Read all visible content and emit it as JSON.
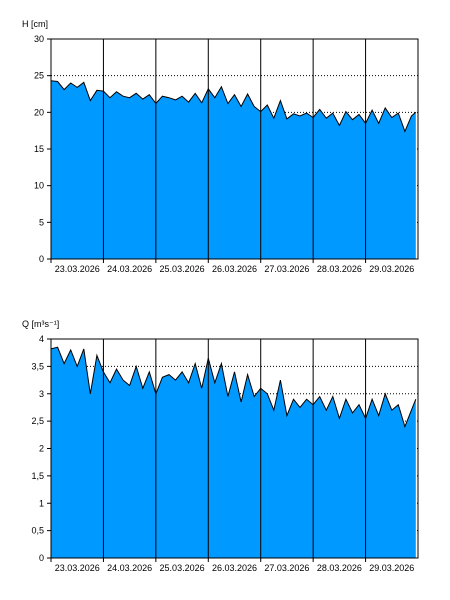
{
  "chart_data": [
    {
      "type": "area",
      "ylabel": "H [cm]",
      "ylim": [
        0,
        30
      ],
      "yticks": [
        0,
        5,
        10,
        15,
        20,
        25,
        30
      ],
      "xlim": [
        "2026-03-23",
        "2026-03-30"
      ],
      "categories": [
        "23.03.2026",
        "24.03.2026",
        "25.03.2026",
        "26.03.2026",
        "27.03.2026",
        "28.03.2026",
        "29.03.2026"
      ],
      "grid": "dotted",
      "fill_color": "#0099ff",
      "series": [
        {
          "x": [
            "2026-03-23T00:00",
            "2026-03-23T03:00",
            "2026-03-23T06:00",
            "2026-03-23T09:00",
            "2026-03-23T12:00",
            "2026-03-23T15:00",
            "2026-03-23T18:00",
            "2026-03-23T21:00",
            "2026-03-24T00:00",
            "2026-03-24T03:00",
            "2026-03-24T06:00",
            "2026-03-24T09:00",
            "2026-03-24T12:00",
            "2026-03-24T15:00",
            "2026-03-24T18:00",
            "2026-03-24T21:00",
            "2026-03-25T00:00",
            "2026-03-25T03:00",
            "2026-03-25T06:00",
            "2026-03-25T09:00",
            "2026-03-25T12:00",
            "2026-03-25T15:00",
            "2026-03-25T18:00",
            "2026-03-25T21:00",
            "2026-03-26T00:00",
            "2026-03-26T03:00",
            "2026-03-26T06:00",
            "2026-03-26T09:00",
            "2026-03-26T12:00",
            "2026-03-26T15:00",
            "2026-03-26T18:00",
            "2026-03-26T21:00",
            "2026-03-27T00:00",
            "2026-03-27T03:00",
            "2026-03-27T06:00",
            "2026-03-27T09:00",
            "2026-03-27T12:00",
            "2026-03-27T15:00",
            "2026-03-27T18:00",
            "2026-03-27T21:00",
            "2026-03-28T00:00",
            "2026-03-28T03:00",
            "2026-03-28T06:00",
            "2026-03-28T09:00",
            "2026-03-28T12:00",
            "2026-03-28T15:00",
            "2026-03-28T18:00",
            "2026-03-28T21:00",
            "2026-03-29T00:00",
            "2026-03-29T03:00",
            "2026-03-29T06:00",
            "2026-03-29T09:00",
            "2026-03-29T12:00",
            "2026-03-29T15:00",
            "2026-03-29T18:00",
            "2026-03-29T21:00",
            "2026-03-29T23:00"
          ],
          "values": [
            24.3,
            24.2,
            23.1,
            24.0,
            23.4,
            24.1,
            21.6,
            23.0,
            22.9,
            22.0,
            22.8,
            22.2,
            22.0,
            22.6,
            21.8,
            22.4,
            21.2,
            22.2,
            22.0,
            21.7,
            22.2,
            21.4,
            22.6,
            21.3,
            23.2,
            22.0,
            23.5,
            21.2,
            22.4,
            20.8,
            22.5,
            20.8,
            20.1,
            21.0,
            19.2,
            21.6,
            19.1,
            19.8,
            19.5,
            19.9,
            19.3,
            20.4,
            19.2,
            19.9,
            18.2,
            20.1,
            19.0,
            19.7,
            18.5,
            20.3,
            18.5,
            20.6,
            19.3,
            19.9,
            17.4,
            19.5,
            20.0
          ]
        }
      ]
    },
    {
      "type": "area",
      "ylabel": "Q [m³s⁻¹]",
      "ylim": [
        0,
        4
      ],
      "yticks": [
        0,
        0.5,
        1,
        1.5,
        2,
        2.5,
        3,
        3.5,
        4
      ],
      "ytick_labels": [
        "0",
        "0,5",
        "1",
        "1,5",
        "2",
        "2,5",
        "3",
        "3,5",
        "4"
      ],
      "xlim": [
        "2026-03-23",
        "2026-03-30"
      ],
      "categories": [
        "23.03.2026",
        "24.03.2026",
        "25.03.2026",
        "26.03.2026",
        "27.03.2026",
        "28.03.2026",
        "29.03.2026"
      ],
      "grid": "dotted",
      "fill_color": "#0099ff",
      "series": [
        {
          "x": [
            "2026-03-23T00:00",
            "2026-03-23T03:00",
            "2026-03-23T06:00",
            "2026-03-23T09:00",
            "2026-03-23T12:00",
            "2026-03-23T15:00",
            "2026-03-23T18:00",
            "2026-03-23T21:00",
            "2026-03-24T00:00",
            "2026-03-24T03:00",
            "2026-03-24T06:00",
            "2026-03-24T09:00",
            "2026-03-24T12:00",
            "2026-03-24T15:00",
            "2026-03-24T18:00",
            "2026-03-24T21:00",
            "2026-03-25T00:00",
            "2026-03-25T03:00",
            "2026-03-25T06:00",
            "2026-03-25T09:00",
            "2026-03-25T12:00",
            "2026-03-25T15:00",
            "2026-03-25T18:00",
            "2026-03-25T21:00",
            "2026-03-26T00:00",
            "2026-03-26T03:00",
            "2026-03-26T06:00",
            "2026-03-26T09:00",
            "2026-03-26T12:00",
            "2026-03-26T15:00",
            "2026-03-26T18:00",
            "2026-03-26T21:00",
            "2026-03-27T00:00",
            "2026-03-27T03:00",
            "2026-03-27T06:00",
            "2026-03-27T09:00",
            "2026-03-27T12:00",
            "2026-03-27T15:00",
            "2026-03-27T18:00",
            "2026-03-27T21:00",
            "2026-03-28T00:00",
            "2026-03-28T03:00",
            "2026-03-28T06:00",
            "2026-03-28T09:00",
            "2026-03-28T12:00",
            "2026-03-28T15:00",
            "2026-03-28T18:00",
            "2026-03-28T21:00",
            "2026-03-29T00:00",
            "2026-03-29T03:00",
            "2026-03-29T06:00",
            "2026-03-29T09:00",
            "2026-03-29T12:00",
            "2026-03-29T15:00",
            "2026-03-29T18:00",
            "2026-03-29T21:00",
            "2026-03-29T23:00"
          ],
          "values": [
            3.82,
            3.85,
            3.55,
            3.8,
            3.5,
            3.82,
            3.0,
            3.7,
            3.4,
            3.2,
            3.45,
            3.25,
            3.15,
            3.5,
            3.1,
            3.4,
            3.0,
            3.3,
            3.35,
            3.25,
            3.4,
            3.2,
            3.55,
            3.1,
            3.65,
            3.2,
            3.55,
            2.95,
            3.4,
            2.85,
            3.35,
            2.95,
            3.1,
            3.0,
            2.7,
            3.25,
            2.6,
            2.9,
            2.75,
            2.9,
            2.8,
            2.95,
            2.7,
            2.95,
            2.55,
            2.9,
            2.65,
            2.8,
            2.55,
            2.9,
            2.6,
            3.0,
            2.7,
            2.8,
            2.4,
            2.7,
            2.9
          ]
        }
      ]
    }
  ]
}
